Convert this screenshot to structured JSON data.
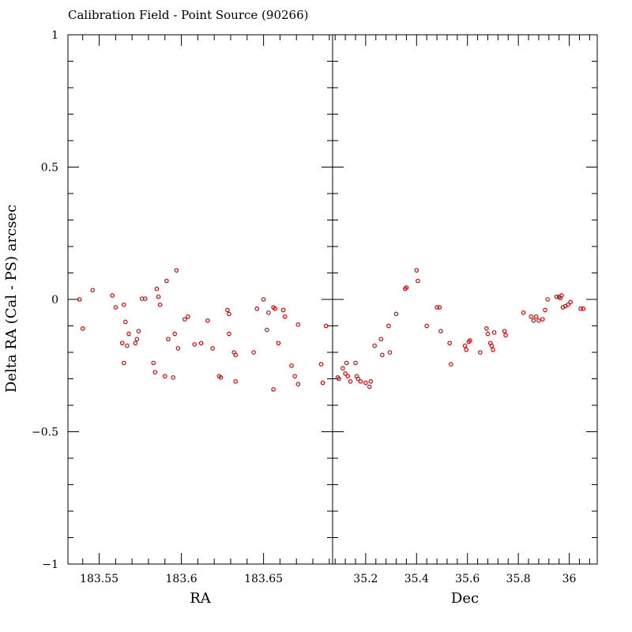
{
  "chart_data": {
    "type": "scatter",
    "title": "Calibration Field - Point Source (90266)",
    "ylabel": "Delta RA (Cal - PS) arcsec",
    "ylim": [
      -1,
      1
    ],
    "yticks": [
      {
        "value": 1,
        "label": "1"
      },
      {
        "value": 0.5,
        "label": "0.5"
      },
      {
        "value": 0,
        "label": "0"
      },
      {
        "value": -0.5,
        "label": "−0.5"
      },
      {
        "value": -1,
        "label": "−1"
      }
    ],
    "point_color": "#e00000",
    "panels": [
      {
        "name": "ra-panel",
        "xlabel": "RA",
        "xlim": [
          183.531,
          183.692
        ],
        "xticks": [
          {
            "value": 183.55,
            "label": "183.55"
          },
          {
            "value": 183.6,
            "label": "183.6"
          },
          {
            "value": 183.65,
            "label": "183.65"
          }
        ],
        "points": [
          [
            183.538,
            0.0
          ],
          [
            183.54,
            -0.11
          ],
          [
            183.546,
            0.035
          ],
          [
            183.558,
            0.015
          ],
          [
            183.56,
            -0.03
          ],
          [
            183.564,
            -0.165
          ],
          [
            183.565,
            -0.02
          ],
          [
            183.565,
            -0.24
          ],
          [
            183.566,
            -0.085
          ],
          [
            183.567,
            -0.175
          ],
          [
            183.568,
            -0.13
          ],
          [
            183.572,
            -0.165
          ],
          [
            183.573,
            -0.15
          ],
          [
            183.574,
            -0.12
          ],
          [
            183.576,
            0.003
          ],
          [
            183.578,
            0.003
          ],
          [
            183.583,
            -0.24
          ],
          [
            183.584,
            -0.275
          ],
          [
            183.585,
            0.04
          ],
          [
            183.586,
            0.01
          ],
          [
            183.587,
            -0.02
          ],
          [
            183.59,
            -0.29
          ],
          [
            183.591,
            0.07
          ],
          [
            183.592,
            -0.15
          ],
          [
            183.595,
            -0.295
          ],
          [
            183.596,
            -0.13
          ],
          [
            183.597,
            0.11
          ],
          [
            183.598,
            -0.185
          ],
          [
            183.602,
            -0.075
          ],
          [
            183.604,
            -0.065
          ],
          [
            183.608,
            -0.17
          ],
          [
            183.612,
            -0.165
          ],
          [
            183.616,
            -0.08
          ],
          [
            183.619,
            -0.185
          ],
          [
            183.623,
            -0.29
          ],
          [
            183.624,
            -0.295
          ],
          [
            183.628,
            -0.04
          ],
          [
            183.629,
            -0.055
          ],
          [
            183.629,
            -0.13
          ],
          [
            183.632,
            -0.2
          ],
          [
            183.633,
            -0.21
          ],
          [
            183.633,
            -0.31
          ],
          [
            183.644,
            -0.2
          ],
          [
            183.646,
            -0.035
          ],
          [
            183.65,
            0.0
          ],
          [
            183.652,
            -0.115
          ],
          [
            183.653,
            -0.05
          ],
          [
            183.656,
            -0.03
          ],
          [
            183.656,
            -0.34
          ],
          [
            183.657,
            -0.035
          ],
          [
            183.659,
            -0.165
          ],
          [
            183.662,
            -0.04
          ],
          [
            183.663,
            -0.065
          ],
          [
            183.667,
            -0.25
          ],
          [
            183.669,
            -0.29
          ],
          [
            183.671,
            -0.095
          ],
          [
            183.671,
            -0.32
          ],
          [
            183.685,
            -0.245
          ],
          [
            183.686,
            -0.315
          ],
          [
            183.688,
            -0.1
          ]
        ]
      },
      {
        "name": "dec-panel",
        "xlabel": "Dec",
        "xlim": [
          35.07,
          36.11
        ],
        "xticks": [
          {
            "value": 35.2,
            "label": "35.2"
          },
          {
            "value": 35.4,
            "label": "35.4"
          },
          {
            "value": 35.6,
            "label": "35.6"
          },
          {
            "value": 35.8,
            "label": "35.8"
          },
          {
            "value": 36.0,
            "label": "36"
          }
        ],
        "points": [
          [
            35.09,
            -0.295
          ],
          [
            35.095,
            -0.3
          ],
          [
            35.11,
            -0.26
          ],
          [
            35.12,
            -0.28
          ],
          [
            35.125,
            -0.24
          ],
          [
            35.13,
            -0.29
          ],
          [
            35.14,
            -0.31
          ],
          [
            35.16,
            -0.24
          ],
          [
            35.165,
            -0.29
          ],
          [
            35.17,
            -0.3
          ],
          [
            35.18,
            -0.31
          ],
          [
            35.2,
            -0.315
          ],
          [
            35.215,
            -0.33
          ],
          [
            35.22,
            -0.31
          ],
          [
            35.235,
            -0.175
          ],
          [
            35.26,
            -0.15
          ],
          [
            35.265,
            -0.21
          ],
          [
            35.29,
            -0.1
          ],
          [
            35.295,
            -0.2
          ],
          [
            35.32,
            -0.055
          ],
          [
            35.355,
            0.04
          ],
          [
            35.36,
            0.045
          ],
          [
            35.4,
            0.11
          ],
          [
            35.405,
            0.07
          ],
          [
            35.44,
            -0.1
          ],
          [
            35.48,
            -0.03
          ],
          [
            35.49,
            -0.03
          ],
          [
            35.495,
            -0.12
          ],
          [
            35.53,
            -0.165
          ],
          [
            35.535,
            -0.245
          ],
          [
            35.59,
            -0.175
          ],
          [
            35.595,
            -0.19
          ],
          [
            35.605,
            -0.16
          ],
          [
            35.61,
            -0.155
          ],
          [
            35.65,
            -0.2
          ],
          [
            35.675,
            -0.11
          ],
          [
            35.68,
            -0.13
          ],
          [
            35.69,
            -0.165
          ],
          [
            35.695,
            -0.175
          ],
          [
            35.7,
            -0.19
          ],
          [
            35.705,
            -0.125
          ],
          [
            35.745,
            -0.12
          ],
          [
            35.75,
            -0.135
          ],
          [
            35.82,
            -0.05
          ],
          [
            35.85,
            -0.065
          ],
          [
            35.86,
            -0.08
          ],
          [
            35.87,
            -0.065
          ],
          [
            35.88,
            -0.08
          ],
          [
            35.895,
            -0.075
          ],
          [
            35.905,
            -0.04
          ],
          [
            35.915,
            0.0
          ],
          [
            35.95,
            0.01
          ],
          [
            35.96,
            0.01
          ],
          [
            35.965,
            0.005
          ],
          [
            35.97,
            0.015
          ],
          [
            35.975,
            -0.03
          ],
          [
            35.985,
            -0.025
          ],
          [
            35.995,
            -0.02
          ],
          [
            36.005,
            -0.01
          ],
          [
            36.045,
            -0.035
          ],
          [
            36.055,
            -0.035
          ]
        ]
      }
    ]
  }
}
